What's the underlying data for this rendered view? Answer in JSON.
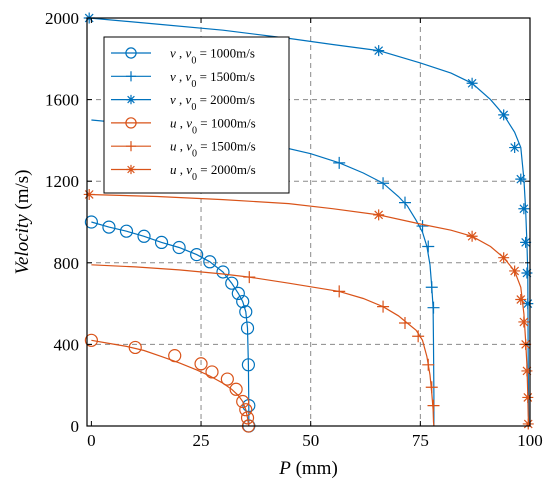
{
  "chart_data": {
    "type": "line",
    "xlabel": "P (mm)",
    "ylabel": "Velocity (m/s)",
    "xlim": [
      -1,
      100
    ],
    "ylim": [
      0,
      2000
    ],
    "xticks": [
      0,
      25,
      50,
      75,
      100
    ],
    "yticks": [
      0,
      400,
      800,
      1200,
      1600,
      2000
    ],
    "grid": "dashed",
    "legend_position": "top-left",
    "colors": {
      "blue": "#0072BD",
      "orange": "#D95319"
    },
    "series": [
      {
        "name": "v , v0 = 1000m/s",
        "var": "v",
        "sub": "0",
        "eq": "= 1000m/s",
        "color": "#0072BD",
        "marker": "circle",
        "x": [
          0,
          4,
          8,
          12,
          16,
          20,
          24,
          27,
          30,
          32,
          33.5,
          34.5,
          35.2,
          35.6,
          35.8,
          35.9,
          35.9
        ],
        "y": [
          1000,
          975,
          955,
          930,
          900,
          875,
          840,
          805,
          755,
          700,
          650,
          610,
          560,
          480,
          300,
          100,
          0
        ]
      },
      {
        "name": "v , v0 = 1500m/s",
        "var": "v",
        "sub": "0",
        "eq": "= 1500m/s",
        "color": "#0072BD",
        "marker": "plus",
        "x": [
          0,
          10,
          20,
          30,
          40,
          50,
          56.5,
          62,
          66.5,
          70,
          72,
          74,
          75.5,
          76.5,
          77.2,
          77.6,
          77.9,
          78.0,
          78.1,
          78.1
        ],
        "y": [
          1500,
          1480,
          1450,
          1420,
          1385,
          1335,
          1290,
          1240,
          1190,
          1125,
          1080,
          1010,
          950,
          880,
          790,
          680,
          580,
          400,
          150,
          0
        ],
        "marker_x": [
          56.5,
          66.5,
          71.5,
          75.5,
          76.8,
          77.6,
          78.0
        ],
        "marker_y": [
          1290,
          1190,
          1095,
          980,
          880,
          680,
          580
        ]
      },
      {
        "name": "v , v0 = 2000m/s",
        "var": "v",
        "sub": "0",
        "eq": "= 2000m/s",
        "color": "#0072BD",
        "marker": "star",
        "x": [
          -0.5,
          15,
          30,
          45,
          55,
          65.5,
          75,
          82,
          86.8,
          91,
          94,
          96.5,
          97.9,
          98.6,
          99.0,
          99.3,
          99.5,
          99.6,
          99.7
        ],
        "y": [
          2000,
          1970,
          1940,
          1900,
          1870,
          1840,
          1780,
          1730,
          1680,
          1600,
          1525,
          1440,
          1365,
          1210,
          1065,
          900,
          750,
          300,
          0
        ],
        "marker_x": [
          -0.5,
          65.5,
          86.8,
          94,
          96.5,
          97.9,
          98.6,
          99.0,
          99.3,
          99.5
        ],
        "marker_y": [
          2000,
          1840,
          1680,
          1525,
          1365,
          1210,
          1065,
          900,
          750,
          600
        ]
      },
      {
        "name": "u , v0 = 1000m/s",
        "var": "u",
        "sub": "0",
        "eq": "= 1000m/s",
        "color": "#D95319",
        "marker": "circle",
        "x": [
          0,
          4,
          8,
          12,
          16,
          20,
          24,
          27,
          30,
          32,
          33.5,
          34.5,
          35.2,
          35.6,
          35.8,
          35.9,
          35.9
        ],
        "y": [
          420,
          405,
          390,
          370,
          340,
          310,
          275,
          245,
          210,
          180,
          150,
          120,
          80,
          40,
          10,
          0,
          0
        ],
        "marker_x": [
          0,
          10,
          19,
          25,
          27.5,
          31,
          33,
          34.5,
          35.2,
          35.6,
          35.8
        ],
        "marker_y": [
          420,
          385,
          345,
          305,
          265,
          230,
          180,
          120,
          80,
          40,
          0
        ]
      },
      {
        "name": "u , v0 = 1500m/s",
        "var": "u",
        "sub": "0",
        "eq": "= 1500m/s",
        "color": "#D95319",
        "marker": "plus",
        "x": [
          0,
          10,
          20,
          30,
          36,
          45,
          56.5,
          62,
          66.5,
          70,
          72,
          74,
          75.5,
          76.5,
          77.2,
          77.6,
          77.9,
          78.0,
          78.1
        ],
        "y": [
          790,
          780,
          765,
          745,
          730,
          700,
          660,
          625,
          585,
          540,
          505,
          470,
          420,
          340,
          250,
          160,
          80,
          20,
          0
        ],
        "marker_x": [
          36,
          56.5,
          66.5,
          71.5,
          74.5,
          76.8,
          77.6,
          78.0
        ],
        "marker_y": [
          730,
          660,
          585,
          505,
          440,
          300,
          190,
          100
        ]
      },
      {
        "name": "u , v0 = 2000m/s",
        "var": "u",
        "sub": "0",
        "eq": "= 2000m/s",
        "color": "#D95319",
        "marker": "star",
        "x": [
          -0.5,
          15,
          30,
          45,
          55,
          65.5,
          75,
          82,
          86.8,
          91,
          94,
          96.5,
          97.9,
          98.6,
          99.0,
          99.3,
          99.5,
          99.6,
          99.7
        ],
        "y": [
          1135,
          1125,
          1110,
          1090,
          1065,
          1035,
          990,
          960,
          930,
          880,
          825,
          760,
          680,
          550,
          420,
          300,
          150,
          50,
          0
        ],
        "marker_x": [
          -0.5,
          65.5,
          86.8,
          94,
          96.5,
          97.9,
          98.6,
          99.0,
          99.3,
          99.5,
          99.6
        ],
        "marker_y": [
          1135,
          1035,
          930,
          825,
          760,
          620,
          510,
          400,
          270,
          140,
          10
        ]
      }
    ]
  }
}
